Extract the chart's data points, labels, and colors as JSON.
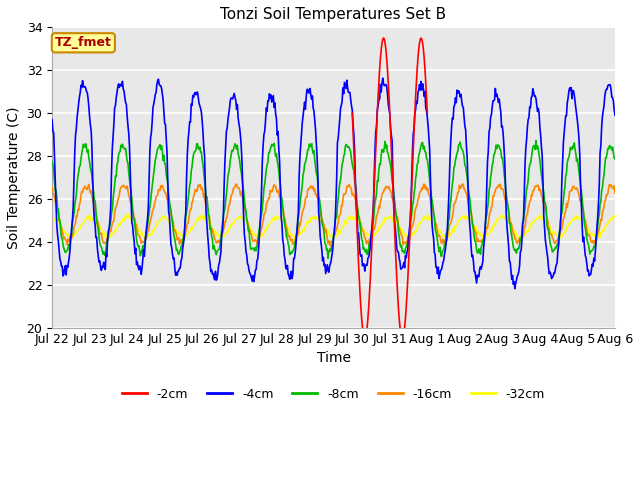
{
  "title": "Tonzi Soil Temperatures Set B",
  "xlabel": "Time",
  "ylabel": "Soil Temperature (C)",
  "ylim": [
    20,
    34
  ],
  "xlim_start": 0,
  "xlim_end": 360,
  "plot_bg_color": "#e8e8e8",
  "annotation_label": "TZ_fmet",
  "annotation_bg": "#ffff99",
  "annotation_border": "#cc8800",
  "annotation_text_color": "#aa0000",
  "legend_entries": [
    "-2cm",
    "-4cm",
    "-8cm",
    "-16cm",
    "-32cm"
  ],
  "line_colors": [
    "#ff0000",
    "#0000ff",
    "#00bb00",
    "#ff8800",
    "#ffff00"
  ],
  "tick_labels": [
    "Jul 22",
    "Jul 23",
    "Jul 24",
    "Jul 25",
    "Jul 26",
    "Jul 27",
    "Jul 28",
    "Jul 29",
    "Jul 30",
    "Jul 31",
    "Aug 1",
    "Aug 2",
    "Aug 3",
    "Aug 4",
    "Aug 5",
    "Aug 6"
  ],
  "tick_positions": [
    0,
    24,
    48,
    72,
    96,
    120,
    144,
    168,
    192,
    216,
    240,
    264,
    288,
    312,
    336,
    360
  ],
  "yticks": [
    20,
    22,
    24,
    26,
    28,
    30,
    32,
    34
  ]
}
